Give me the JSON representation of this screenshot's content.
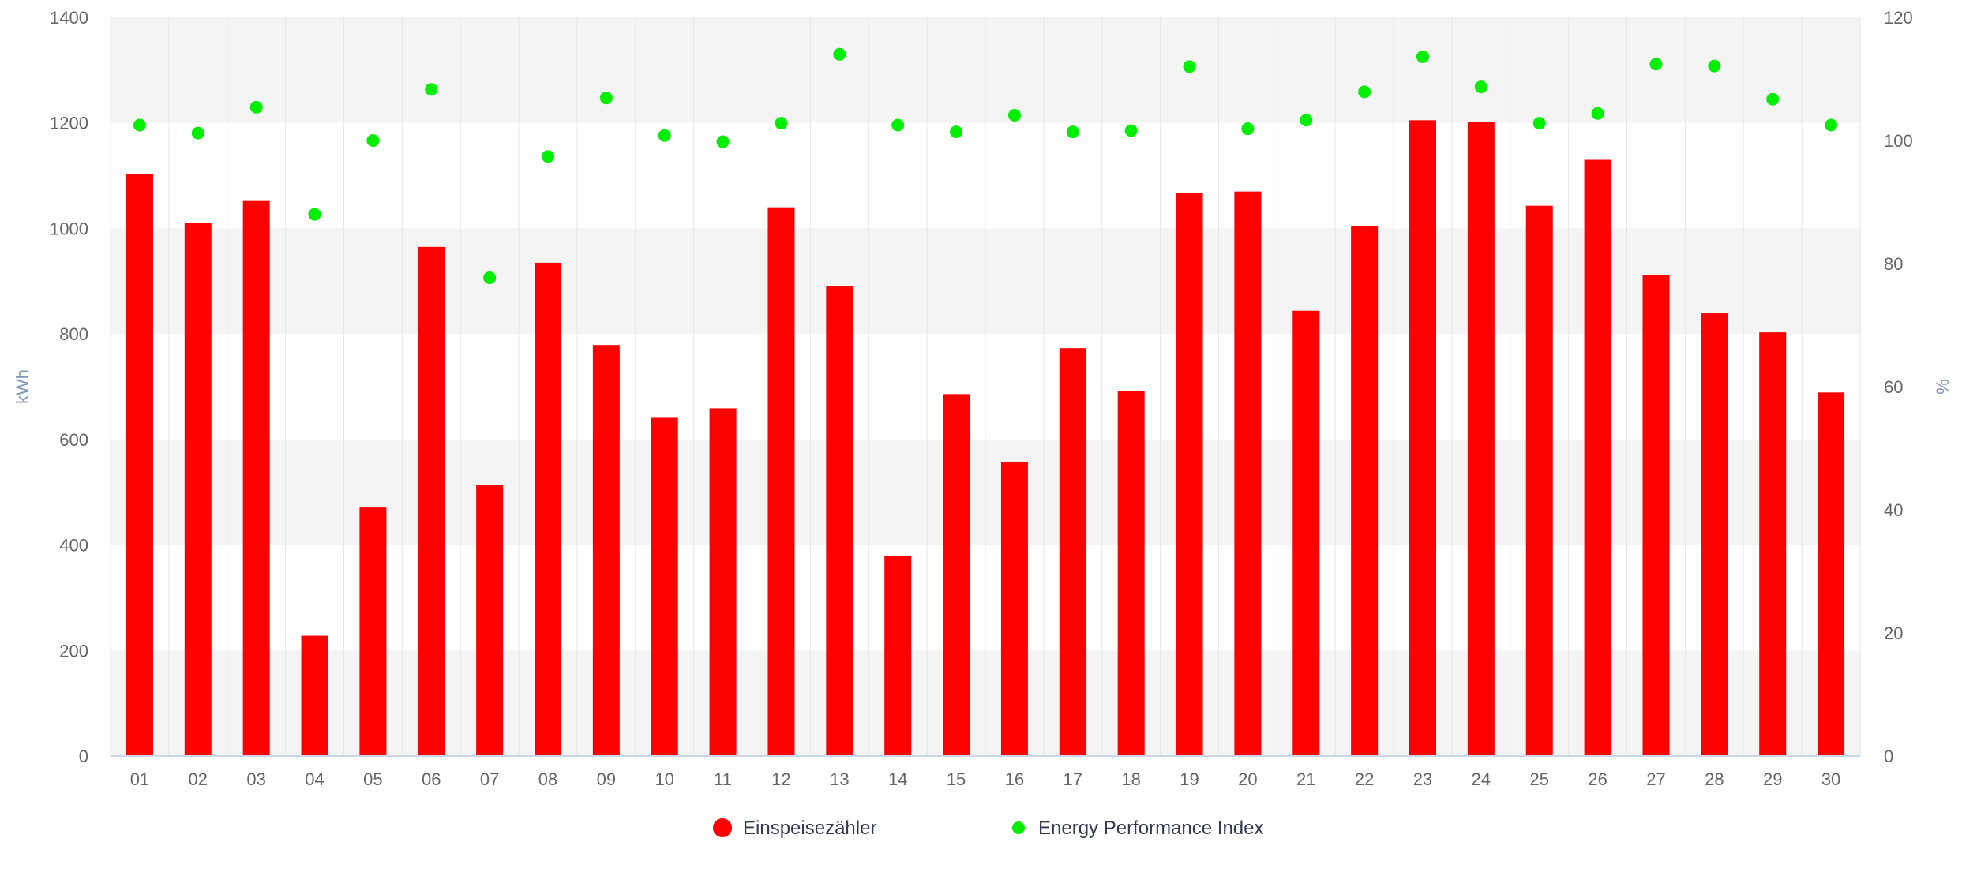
{
  "chart_data": {
    "type": "bar",
    "categories": [
      "01",
      "02",
      "03",
      "04",
      "05",
      "06",
      "07",
      "08",
      "09",
      "10",
      "11",
      "12",
      "13",
      "14",
      "15",
      "16",
      "17",
      "18",
      "19",
      "20",
      "21",
      "22",
      "23",
      "24",
      "25",
      "26",
      "27",
      "28",
      "29",
      "30"
    ],
    "series": [
      {
        "name": "Einspeisezähler",
        "type": "bar",
        "axis": "left",
        "color": "#ff0000",
        "values": [
          1103,
          1011,
          1052,
          228,
          471,
          965,
          513,
          935,
          779,
          641,
          659,
          1040,
          890,
          380,
          686,
          558,
          773,
          692,
          1067,
          1070,
          844,
          1004,
          1205,
          1201,
          1043,
          1130,
          912,
          839,
          803,
          689
        ]
      },
      {
        "name": "Energy Performance Index",
        "type": "scatter",
        "axis": "right",
        "color": "#00ee00",
        "values": [
          102.5,
          101.2,
          105.4,
          88.0,
          100.0,
          108.3,
          77.7,
          97.4,
          106.9,
          100.8,
          99.8,
          102.8,
          114.0,
          102.5,
          101.4,
          104.1,
          101.4,
          101.6,
          112.0,
          101.9,
          103.3,
          107.9,
          113.6,
          108.7,
          102.8,
          104.4,
          112.4,
          112.1,
          106.7,
          102.5
        ]
      }
    ],
    "ylabel": "kWh",
    "ylabel_right": "%",
    "ylim": [
      0,
      1400
    ],
    "ylim_right": [
      0,
      120
    ],
    "yticks": [
      "0",
      "200",
      "400",
      "600",
      "800",
      "1000",
      "1200",
      "1400"
    ],
    "yticks_right": [
      "0",
      "20",
      "40",
      "60",
      "80",
      "100",
      "120"
    ],
    "grid": true,
    "legend": "bottom-center"
  }
}
